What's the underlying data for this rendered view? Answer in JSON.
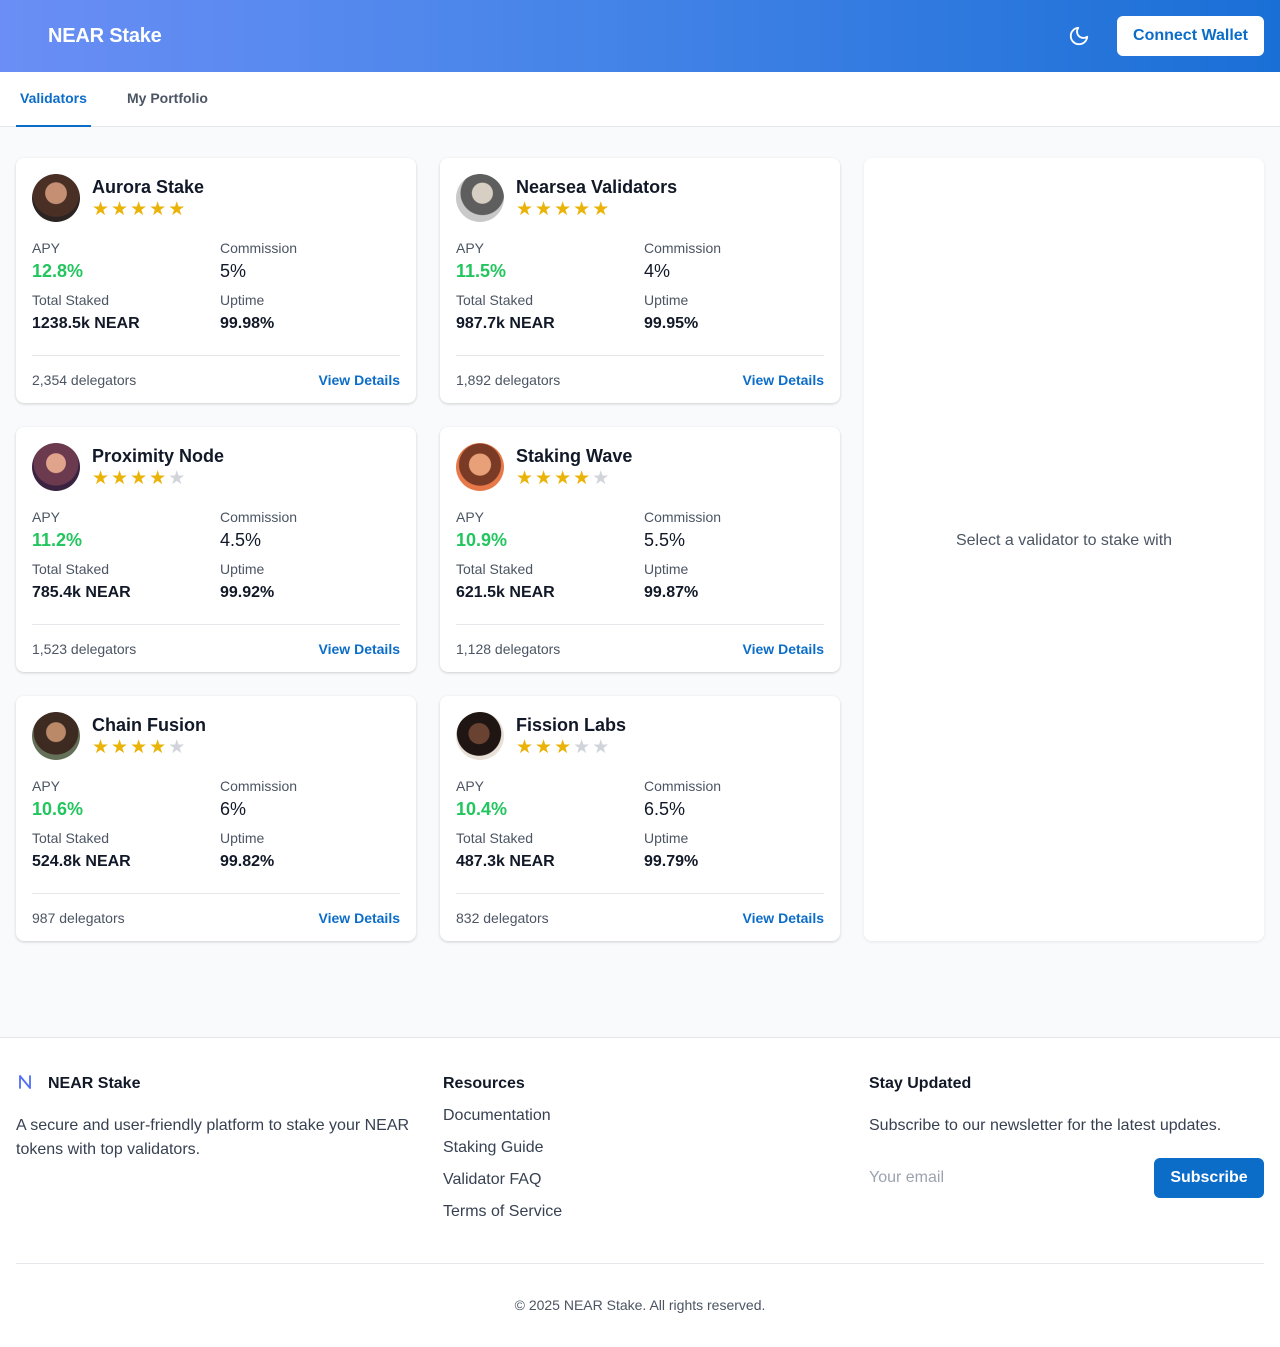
{
  "header": {
    "brand": "NEAR Stake",
    "connect_label": "Connect Wallet",
    "theme_icon": "moon-icon"
  },
  "tabs": [
    {
      "label": "Validators",
      "active": true
    },
    {
      "label": "My Portfolio",
      "active": false
    }
  ],
  "labels": {
    "apy": "APY",
    "commission": "Commission",
    "total_staked": "Total Staked",
    "uptime": "Uptime",
    "view_details": "View Details"
  },
  "validators": [
    {
      "name": "Aurora Stake",
      "rating": 5,
      "apy": "12.8%",
      "commission": "5%",
      "total_staked": "1238.5k NEAR",
      "uptime": "99.98%",
      "delegators": "2,354 delegators"
    },
    {
      "name": "Nearsea Validators",
      "rating": 5,
      "apy": "11.5%",
      "commission": "4%",
      "total_staked": "987.7k NEAR",
      "uptime": "99.95%",
      "delegators": "1,892 delegators"
    },
    {
      "name": "Proximity Node",
      "rating": 4,
      "apy": "11.2%",
      "commission": "4.5%",
      "total_staked": "785.4k NEAR",
      "uptime": "99.92%",
      "delegators": "1,523 delegators"
    },
    {
      "name": "Staking Wave",
      "rating": 4,
      "apy": "10.9%",
      "commission": "5.5%",
      "total_staked": "621.5k NEAR",
      "uptime": "99.87%",
      "delegators": "1,128 delegators"
    },
    {
      "name": "Chain Fusion",
      "rating": 4,
      "apy": "10.6%",
      "commission": "6%",
      "total_staked": "524.8k NEAR",
      "uptime": "99.82%",
      "delegators": "987 delegators"
    },
    {
      "name": "Fission Labs",
      "rating": 3,
      "apy": "10.4%",
      "commission": "6.5%",
      "total_staked": "487.3k NEAR",
      "uptime": "99.79%",
      "delegators": "832 delegators"
    }
  ],
  "stake_panel": {
    "placeholder": "Select a validator to stake with"
  },
  "footer": {
    "brand": "NEAR Stake",
    "description": "A secure and user-friendly platform to stake your NEAR tokens with top validators.",
    "resources_title": "Resources",
    "resources": [
      "Documentation",
      "Staking Guide",
      "Validator FAQ",
      "Terms of Service"
    ],
    "newsletter_title": "Stay Updated",
    "newsletter_text": "Subscribe to our newsletter for the latest updates.",
    "email_placeholder": "Your email",
    "subscribe_label": "Subscribe",
    "copyright": "© 2025 NEAR Stake. All rights reserved."
  },
  "colors": {
    "accent": "#0c6dc9",
    "apy_green": "#22c55e",
    "star_gold": "#eab308"
  }
}
